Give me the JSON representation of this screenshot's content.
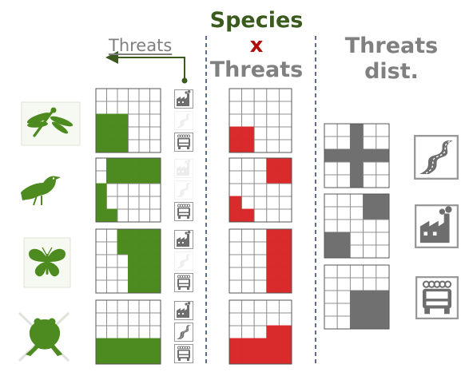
{
  "title": {
    "line1": "Species",
    "line2": "x",
    "line3": "Threats",
    "right_line1": "Threats",
    "right_line2": "dist."
  },
  "threats_label": "Threats",
  "colors": {
    "species_green": "#4d8a1f",
    "overlap_red": "#d92b2b",
    "threat_gray": "#707070",
    "title_green": "#3a5a1e",
    "title_red": "#b00d0d",
    "title_gray": "#808080",
    "divider": "#2a3a6a"
  },
  "species": [
    {
      "name": "dragonfly-icon",
      "grid": [
        "000000",
        "000000",
        "111000",
        "111000",
        "111000"
      ],
      "threat_icons": [
        "factory-icon",
        "road-icon",
        "truck-icon"
      ],
      "threat_icon_faded": [
        false,
        true,
        false
      ],
      "overlap": [
        "00000",
        "00000",
        "00000",
        "11000",
        "11000"
      ]
    },
    {
      "name": "bird-icon",
      "grid": [
        "011111",
        "011111",
        "100000",
        "100000",
        "110000"
      ],
      "threat_icons": [
        "factory-icon",
        "road-icon",
        "truck-icon"
      ],
      "threat_icon_faded": [
        true,
        true,
        false
      ],
      "overlap": [
        "00011",
        "00011",
        "00000",
        "10000",
        "11000"
      ]
    },
    {
      "name": "butterfly-icon",
      "grid": [
        "001111",
        "001111",
        "000111",
        "000111",
        "000111"
      ],
      "threat_icons": [
        "factory-icon",
        "road-icon",
        "truck-icon"
      ],
      "threat_icon_faded": [
        false,
        true,
        false
      ],
      "overlap": [
        "00011",
        "00011",
        "00011",
        "00011",
        "00011"
      ]
    },
    {
      "name": "frog-icon",
      "grid": [
        "000000",
        "000000",
        "000000",
        "111111",
        "111111"
      ],
      "threat_icons": [
        "factory-icon",
        "road-icon",
        "truck-icon"
      ],
      "threat_icon_faded": [
        false,
        false,
        false
      ],
      "overlap": [
        "00000",
        "00000",
        "00011",
        "11111",
        "11111"
      ]
    }
  ],
  "threat_distributions": [
    {
      "name": "road-distribution",
      "icon": "road-icon",
      "grid": [
        "00100",
        "00100",
        "11111",
        "00100",
        "00100"
      ]
    },
    {
      "name": "factory-distribution",
      "icon": "factory-icon",
      "grid": [
        "00011",
        "00011",
        "00000",
        "11000",
        "11000"
      ]
    },
    {
      "name": "truck-distribution",
      "icon": "truck-icon",
      "grid": [
        "00000",
        "00000",
        "00111",
        "00111",
        "00111"
      ]
    }
  ]
}
